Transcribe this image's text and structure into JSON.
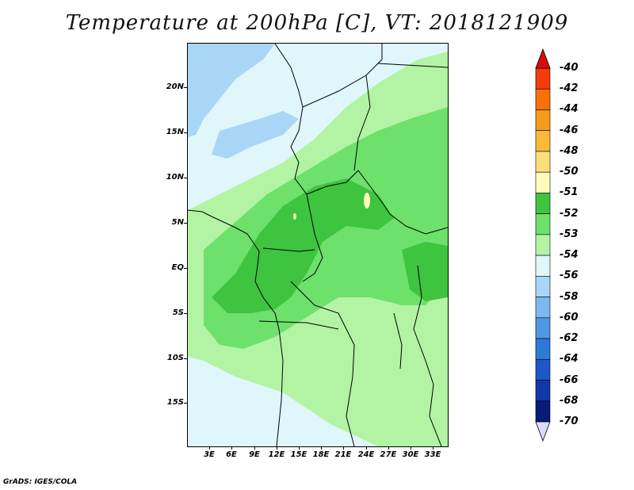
{
  "title": "Temperature at 200hPa [C], VT: 2018121909",
  "footer": "GrADS: IGES/COLA",
  "lat_labels": [
    "20N",
    "15N",
    "10N",
    "5N",
    "EQ",
    "5S",
    "10S",
    "15S"
  ],
  "lon_labels": [
    "3E",
    "6E",
    "9E",
    "12E",
    "15E",
    "18E",
    "21E",
    "24E",
    "27E",
    "30E",
    "33E"
  ],
  "colorbar": {
    "levels": [
      {
        "label": "-40",
        "color": "#e8160c"
      },
      {
        "label": "-42",
        "color": "#f43c0a"
      },
      {
        "label": "-44",
        "color": "#f86f0c"
      },
      {
        "label": "-46",
        "color": "#f89a1c"
      },
      {
        "label": "-48",
        "color": "#fbb83a"
      },
      {
        "label": "-50",
        "color": "#fcdf7a"
      },
      {
        "label": "-51",
        "color": "#fdfcbc"
      },
      {
        "label": "-52",
        "color": "#3ec43e"
      },
      {
        "label": "-53",
        "color": "#6ee06c"
      },
      {
        "label": "-54",
        "color": "#b2f4a4"
      },
      {
        "label": "-56",
        "color": "#dff7fb"
      },
      {
        "label": "-58",
        "color": "#a9d6f6"
      },
      {
        "label": "-60",
        "color": "#7bb8ee"
      },
      {
        "label": "-62",
        "color": "#4d98e2"
      },
      {
        "label": "-64",
        "color": "#2e78d8"
      },
      {
        "label": "-66",
        "color": "#1c58c6"
      },
      {
        "label": "-68",
        "color": "#1238a8"
      },
      {
        "label": "-70",
        "color": "#0a1a78"
      }
    ],
    "top_arrow_color": "#d80c0c",
    "bottom_arrow_color": "#dcdcf8"
  }
}
